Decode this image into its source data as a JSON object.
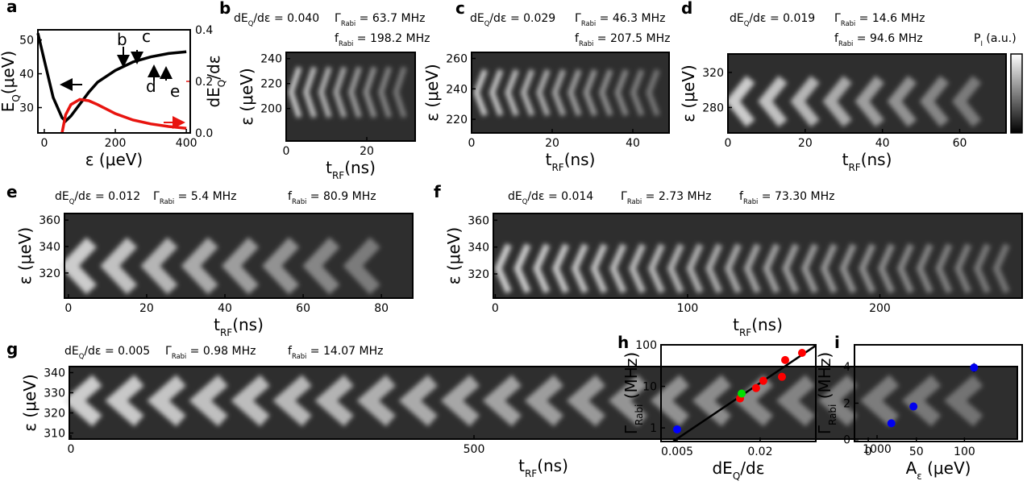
{
  "chart_data": [
    {
      "type": "line",
      "label": "a",
      "xlabel": [
        "ε (μeV)"
      ],
      "ylabel": [
        "E",
        "Q",
        "(μeV)"
      ],
      "y2label": [
        "dE",
        "Q",
        "/dε"
      ],
      "xlim": [
        -18,
        411
      ],
      "xticks": [
        0,
        200,
        400
      ],
      "ylim": [
        22.5,
        53
      ],
      "yticks": [
        30,
        40,
        50
      ],
      "y2lim": [
        0,
        0.4
      ],
      "y2ticks": [
        {
          "value": 0,
          "label": "0.0"
        },
        {
          "value": 0.2,
          "label": "0.2"
        },
        {
          "value": 0.4,
          "label": "0.4"
        }
      ],
      "x": [
        -18,
        0,
        25,
        50,
        60,
        75,
        100,
        125,
        150,
        200,
        250,
        300,
        350,
        400
      ],
      "series": [
        {
          "color": "#000000",
          "values": [
            52,
            44,
            33,
            27,
            26,
            27.5,
            31,
            34.5,
            37.5,
            41,
            43.5,
            45,
            46,
            46.5
          ]
        },
        {
          "color": "#e8140f",
          "axis": "y2",
          "values": [
            null,
            null,
            null,
            0,
            0.07,
            0.11,
            0.13,
            0.125,
            0.11,
            0.075,
            0.05,
            0.035,
            0.025,
            0.018
          ]
        }
      ],
      "annotations": [
        "b",
        "c",
        "d",
        "e"
      ]
    },
    {
      "type": "heatmap",
      "label": "b",
      "annotations": [
        [
          "dE",
          "Q",
          "/dε = 0.040"
        ],
        [
          "Γ",
          "Rabi",
          " = 63.7 MHz"
        ],
        [
          "f",
          "Rabi",
          " = 198.2 MHz"
        ]
      ],
      "xlabel": [
        "t",
        "RF",
        "(ns)"
      ],
      "ylabel": [
        "ε (μeV)"
      ],
      "xlim": [
        0,
        32
      ],
      "xticks": [
        0,
        20
      ],
      "ylim": [
        174,
        245
      ],
      "yticks": [
        200,
        220,
        240
      ]
    },
    {
      "type": "heatmap",
      "label": "c",
      "annotations": [
        [
          "dE",
          "Q",
          "/dε = 0.029"
        ],
        [
          "Γ",
          "Rabi",
          " = 46.3 MHz"
        ],
        [
          "f",
          "Rabi",
          " = 207.5 MHz"
        ]
      ],
      "xlabel": [
        "t",
        "RF",
        "(ns)"
      ],
      "ylabel": [
        "ε (μeV)"
      ],
      "xlim": [
        0,
        49
      ],
      "xticks": [
        0,
        20,
        40
      ],
      "ylim": [
        211,
        264
      ],
      "yticks": [
        220,
        240,
        260
      ]
    },
    {
      "type": "heatmap",
      "label": "d",
      "annotations": [
        [
          "dE",
          "Q",
          "/dε = 0.019"
        ],
        [
          "Γ",
          "Rabi",
          " = 14.6 MHz"
        ],
        [
          "f",
          "Rabi",
          " = 94.6 MHz"
        ]
      ],
      "xlabel": [
        "t",
        "RF",
        "(ns)"
      ],
      "ylabel": [
        "ε (μeV)"
      ],
      "xlim": [
        0,
        72
      ],
      "xticks": [
        0,
        20,
        40,
        60
      ],
      "ylim": [
        251,
        341
      ],
      "yticks": [
        280,
        320
      ],
      "colorbar_label": [
        "P",
        "I",
        " (a.u.)"
      ]
    },
    {
      "type": "heatmap",
      "label": "e",
      "annotations": [
        [
          "dE",
          "Q",
          "/dε = 0.012"
        ],
        [
          "Γ",
          "Rabi",
          " = 5.4 MHz"
        ],
        [
          "f",
          "Rabi",
          " = 80.9 MHz"
        ]
      ],
      "xlabel": [
        "t",
        "RF",
        "(ns)"
      ],
      "ylabel": [
        "ε (μeV)"
      ],
      "xlim": [
        -1,
        88
      ],
      "xticks": [
        0,
        20,
        40,
        60,
        80
      ],
      "ylim": [
        301,
        365
      ],
      "yticks": [
        320,
        340,
        360
      ]
    },
    {
      "type": "heatmap",
      "label": "f",
      "annotations": [
        [
          "dE",
          "Q",
          "/dε = 0.014"
        ],
        [
          "Γ",
          "Rabi",
          " = 2.73 MHz"
        ],
        [
          "f",
          "Rabi",
          " = 73.30 MHz"
        ]
      ],
      "xlabel": [
        "t",
        "RF",
        "(ns)"
      ],
      "ylabel": [
        "ε (μeV)"
      ],
      "xlim": [
        -1,
        274
      ],
      "xticks": [
        0,
        100,
        200
      ],
      "ylim": [
        302,
        365
      ],
      "yticks": [
        320,
        340,
        360
      ]
    },
    {
      "type": "heatmap",
      "label": "g",
      "annotations": [
        [
          "dE",
          "Q",
          "/dε = 0.005"
        ],
        [
          "Γ",
          "Rabi",
          " = 0.98 MHz"
        ],
        [
          "f",
          "Rabi",
          " = 14.07 MHz"
        ]
      ],
      "xlabel": [
        "t",
        "RF",
        "(ns)"
      ],
      "ylabel": [
        "ε (μeV)"
      ],
      "xlim": [
        -2,
        1174
      ],
      "xticks": [
        0,
        500,
        1000
      ],
      "ylim": [
        307,
        343
      ],
      "yticks": [
        310,
        320,
        330,
        340
      ]
    },
    {
      "type": "scatter",
      "label": "h",
      "xlabel": [
        "dE",
        "Q",
        "/dε"
      ],
      "ylabel": [
        "Γ",
        "Rabi",
        " (MHz)"
      ],
      "xscale": "log",
      "yscale": "log",
      "xlim": [
        0.00382,
        0.0507
      ],
      "xticks": [
        0.005,
        0.02
      ],
      "ylim": [
        0.47,
        100
      ],
      "yticks": [
        1,
        10,
        100
      ],
      "series": [
        {
          "color": "#ff0000",
          "x": [
            0.0143,
            0.0187,
            0.0211,
            0.0288,
            0.0304,
            0.0403
          ],
          "values": [
            5.1,
            9.1,
            13.6,
            17,
            43,
            64
          ]
        },
        {
          "color": "#00e000",
          "x": [
            0.0147
          ],
          "values": [
            6.7
          ]
        },
        {
          "color": "#0000ff",
          "x": [
            0.005
          ],
          "values": [
            0.92
          ]
        }
      ],
      "fit": {
        "color": "#000000",
        "x": [
          0.00467,
          0.0507
        ],
        "values": [
          0.47,
          96
        ]
      }
    },
    {
      "type": "scatter",
      "label": "i",
      "xlabel": [
        "A",
        "ε",
        " (μeV)"
      ],
      "ylabel": [
        "Γ",
        "Rabi",
        " (MHz)"
      ],
      "xlim": [
        -14.3,
        160
      ],
      "xticks": [
        0,
        50,
        100
      ],
      "ylim": [
        -0.1,
        5.2
      ],
      "yticks": [
        0,
        2,
        4
      ],
      "series": [
        {
          "color": "#0000ee",
          "x": [
            24,
            47,
            110
          ],
          "values": [
            0.9,
            1.82,
            3.95
          ],
          "errors": [
            null,
            null,
            0.25
          ]
        }
      ]
    }
  ]
}
